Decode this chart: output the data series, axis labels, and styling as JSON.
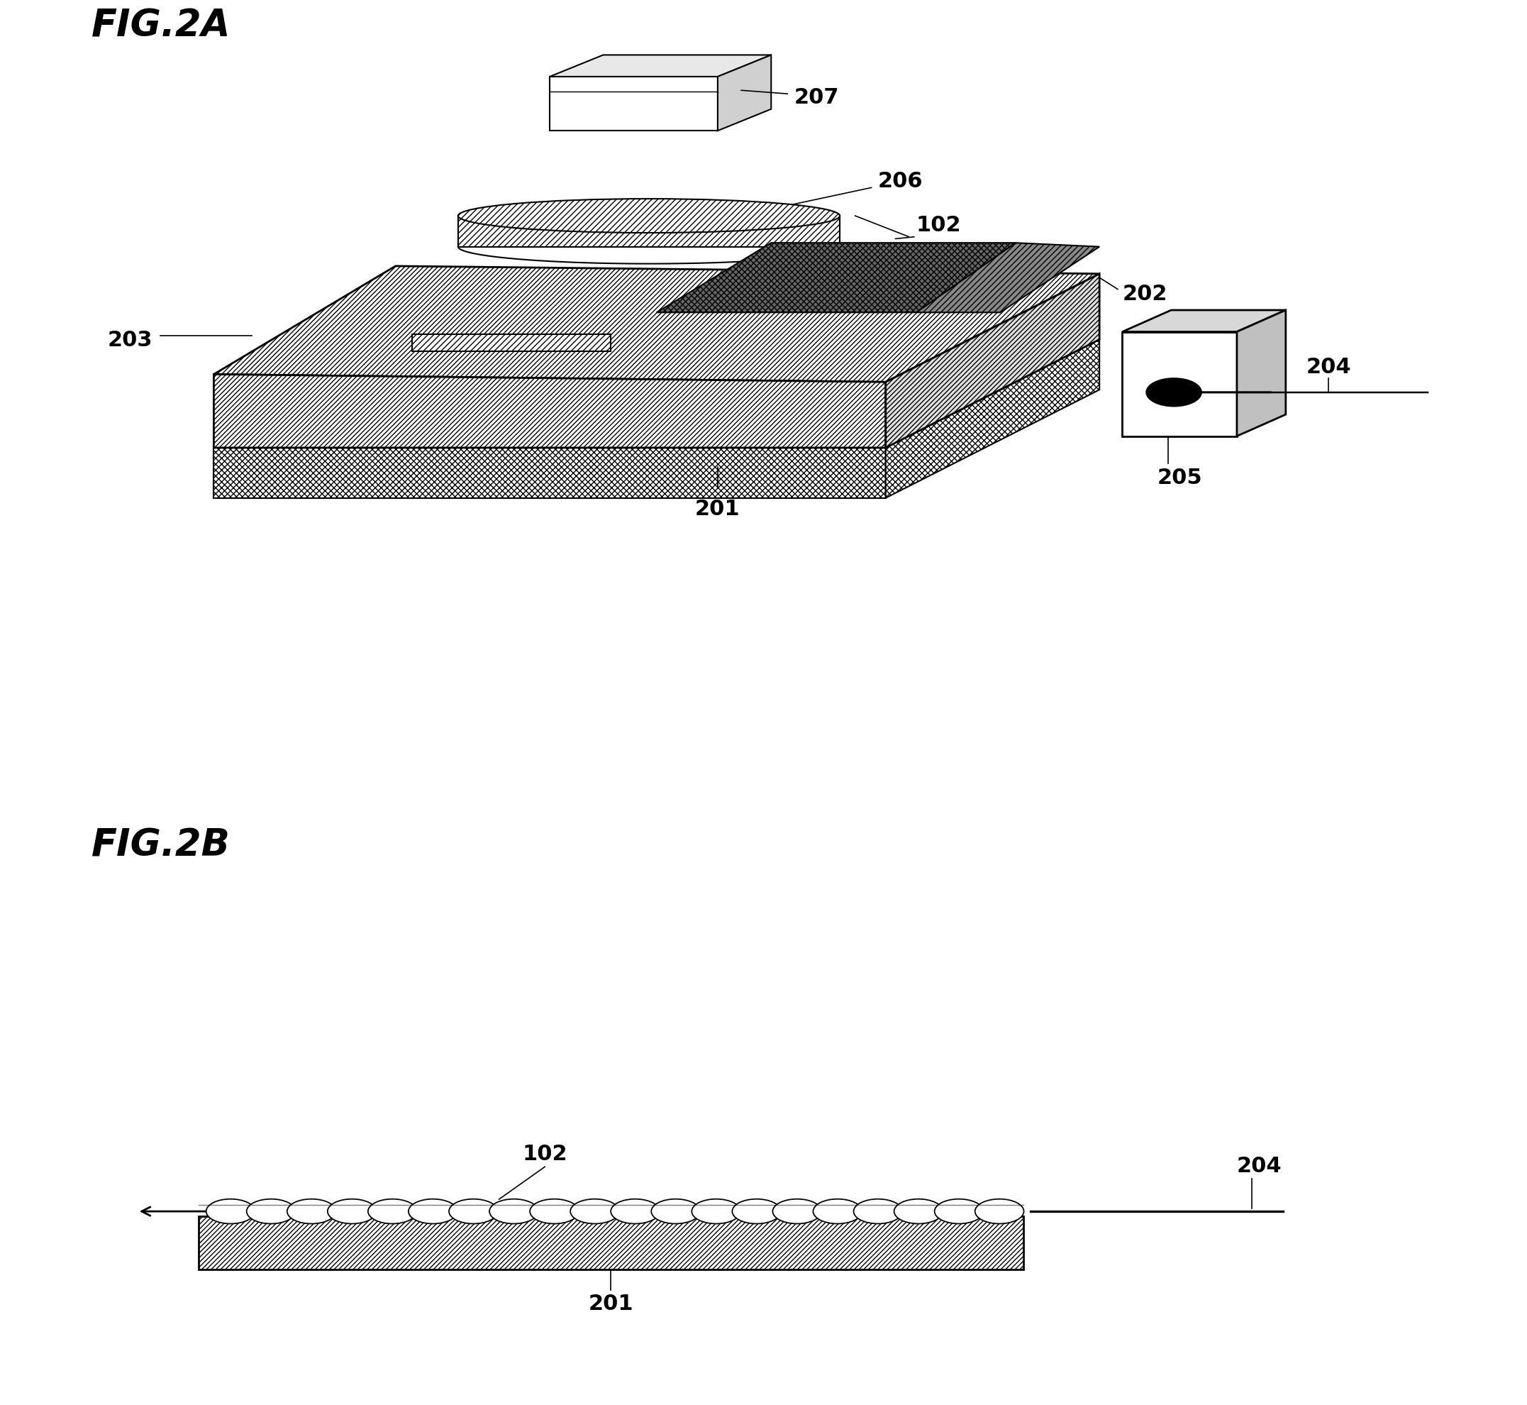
{
  "fig_width": 21.53,
  "fig_height": 19.81,
  "bg_color": "#ffffff",
  "label_2A": "FIG.2A",
  "label_2B": "FIG.2B",
  "lw": 1.5,
  "lw2": 2.0
}
